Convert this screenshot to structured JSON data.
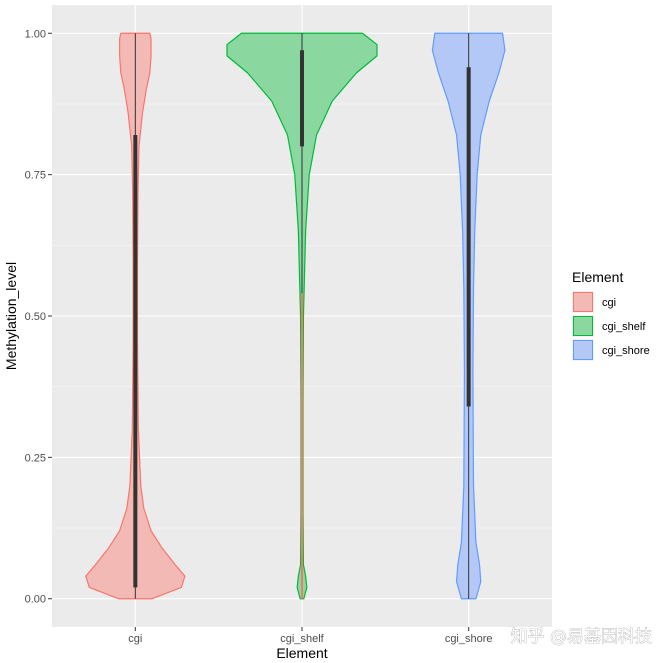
{
  "chart_data": {
    "type": "violin",
    "xlabel": "Element",
    "ylabel": "Methylation_level",
    "ylim": [
      -0.05,
      1.05
    ],
    "yticks": [
      0.0,
      0.25,
      0.5,
      0.75,
      1.0
    ],
    "ytick_labels": [
      "0.00",
      "0.25",
      "0.50",
      "0.75",
      "1.00"
    ],
    "categories": [
      "cgi",
      "cgi_shelf",
      "cgi_shore"
    ],
    "grid": true,
    "legend": {
      "title": "Element",
      "position": "right",
      "entries": [
        "cgi",
        "cgi_shelf",
        "cgi_shore"
      ]
    },
    "series": [
      {
        "name": "cgi",
        "fill": "#f3b9b5",
        "stroke": "#f8766d",
        "density": [
          [
            0.0,
            0.14
          ],
          [
            0.02,
            0.38
          ],
          [
            0.04,
            0.41
          ],
          [
            0.06,
            0.33
          ],
          [
            0.09,
            0.22
          ],
          [
            0.12,
            0.13
          ],
          [
            0.16,
            0.07
          ],
          [
            0.2,
            0.045
          ],
          [
            0.3,
            0.025
          ],
          [
            0.45,
            0.018
          ],
          [
            0.6,
            0.018
          ],
          [
            0.72,
            0.022
          ],
          [
            0.8,
            0.03
          ],
          [
            0.86,
            0.06
          ],
          [
            0.9,
            0.09
          ],
          [
            0.93,
            0.12
          ],
          [
            0.96,
            0.13
          ],
          [
            0.99,
            0.13
          ],
          [
            1.0,
            0.12
          ]
        ],
        "box": {
          "q1": 0.02,
          "q3": 0.82
        },
        "whisker": [
          0.0,
          1.0
        ]
      },
      {
        "name": "cgi_shelf",
        "fill": "#8ad7a0",
        "stroke": "#00ba38",
        "density": [
          [
            0.0,
            0.015
          ],
          [
            0.02,
            0.04
          ],
          [
            0.04,
            0.03
          ],
          [
            0.06,
            0.012
          ],
          [
            0.15,
            0.008
          ],
          [
            0.35,
            0.008
          ],
          [
            0.5,
            0.012
          ],
          [
            0.55,
            0.018
          ],
          [
            0.65,
            0.03
          ],
          [
            0.75,
            0.06
          ],
          [
            0.82,
            0.12
          ],
          [
            0.88,
            0.25
          ],
          [
            0.93,
            0.45
          ],
          [
            0.96,
            0.62
          ],
          [
            0.98,
            0.62
          ],
          [
            1.0,
            0.5
          ]
        ],
        "box": {
          "q1": 0.8,
          "q3": 0.97
        },
        "whisker": [
          0.0,
          1.0
        ]
      },
      {
        "name": "cgi_shore",
        "fill": "#b3c8f7",
        "stroke": "#619cff",
        "density": [
          [
            0.0,
            0.06
          ],
          [
            0.03,
            0.1
          ],
          [
            0.06,
            0.09
          ],
          [
            0.1,
            0.06
          ],
          [
            0.2,
            0.04
          ],
          [
            0.4,
            0.035
          ],
          [
            0.55,
            0.04
          ],
          [
            0.65,
            0.05
          ],
          [
            0.75,
            0.07
          ],
          [
            0.82,
            0.1
          ],
          [
            0.88,
            0.17
          ],
          [
            0.93,
            0.25
          ],
          [
            0.97,
            0.3
          ],
          [
            1.0,
            0.28
          ]
        ],
        "box": {
          "q1": 0.34,
          "q3": 0.94
        },
        "whisker": [
          0.0,
          1.0
        ]
      }
    ]
  },
  "watermark": "知乎 @易基因科技"
}
